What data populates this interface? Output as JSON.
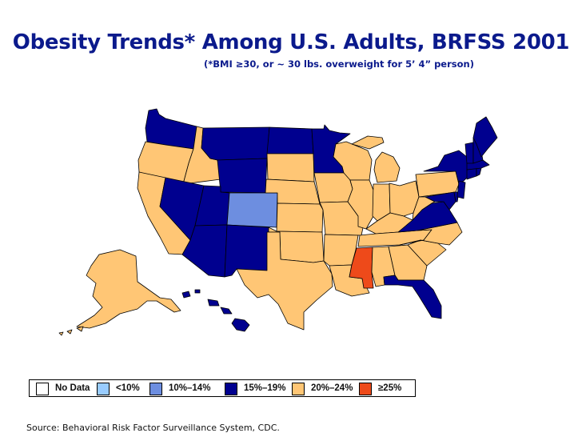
{
  "title": "Obesity Trends* Among U.S. Adults, BRFSS 2001",
  "subtitle": "(*BMI ≥30, or ~ 30 lbs. overweight for 5’ 4” person)",
  "source": "Source: Behavioral Risk Factor Surveillance System, CDC.",
  "colors": {
    "no_data": "#ffffff",
    "lt10": "#99ccff",
    "c10_14": "#6d8ee0",
    "c15_19": "#00008f",
    "c20_24": "#ffc675",
    "ge25": "#ee4a1a",
    "border": "#000000"
  },
  "legend": [
    {
      "label": "No Data",
      "color": "#ffffff"
    },
    {
      "label": "<10%",
      "color": "#99ccff"
    },
    {
      "label": "10%–14%",
      "color": "#6d8ee0"
    },
    {
      "label": "15%–19%",
      "color": "#00008f"
    },
    {
      "label": "20%–24%",
      "color": "#ffc675"
    },
    {
      "label": "≥25%",
      "color": "#ee4a1a"
    }
  ],
  "categories": {
    "10%–14%": [
      "Colorado"
    ],
    "15%–19%": [
      "Washington",
      "Montana",
      "Wyoming",
      "North Dakota",
      "Minnesota",
      "Nevada",
      "Utah",
      "Arizona",
      "New Mexico",
      "Virginia",
      "Florida",
      "Hawaii",
      "New York",
      "Vermont",
      "New Hampshire",
      "Maine",
      "Massachusetts",
      "Connecticut",
      "Rhode Island",
      "New Jersey",
      "Delaware",
      "Maryland"
    ],
    "20%–24%": [
      "Oregon",
      "Idaho",
      "California",
      "South Dakota",
      "Nebraska",
      "Kansas",
      "Oklahoma",
      "Texas",
      "Iowa",
      "Missouri",
      "Arkansas",
      "Louisiana",
      "Wisconsin",
      "Illinois",
      "Michigan",
      "Indiana",
      "Ohio",
      "Kentucky",
      "Tennessee",
      "Alabama",
      "Georgia",
      "South Carolina",
      "North Carolina",
      "West Virginia",
      "Pennsylvania",
      "Alaska"
    ],
    "≥25%": [
      "Mississippi"
    ]
  }
}
